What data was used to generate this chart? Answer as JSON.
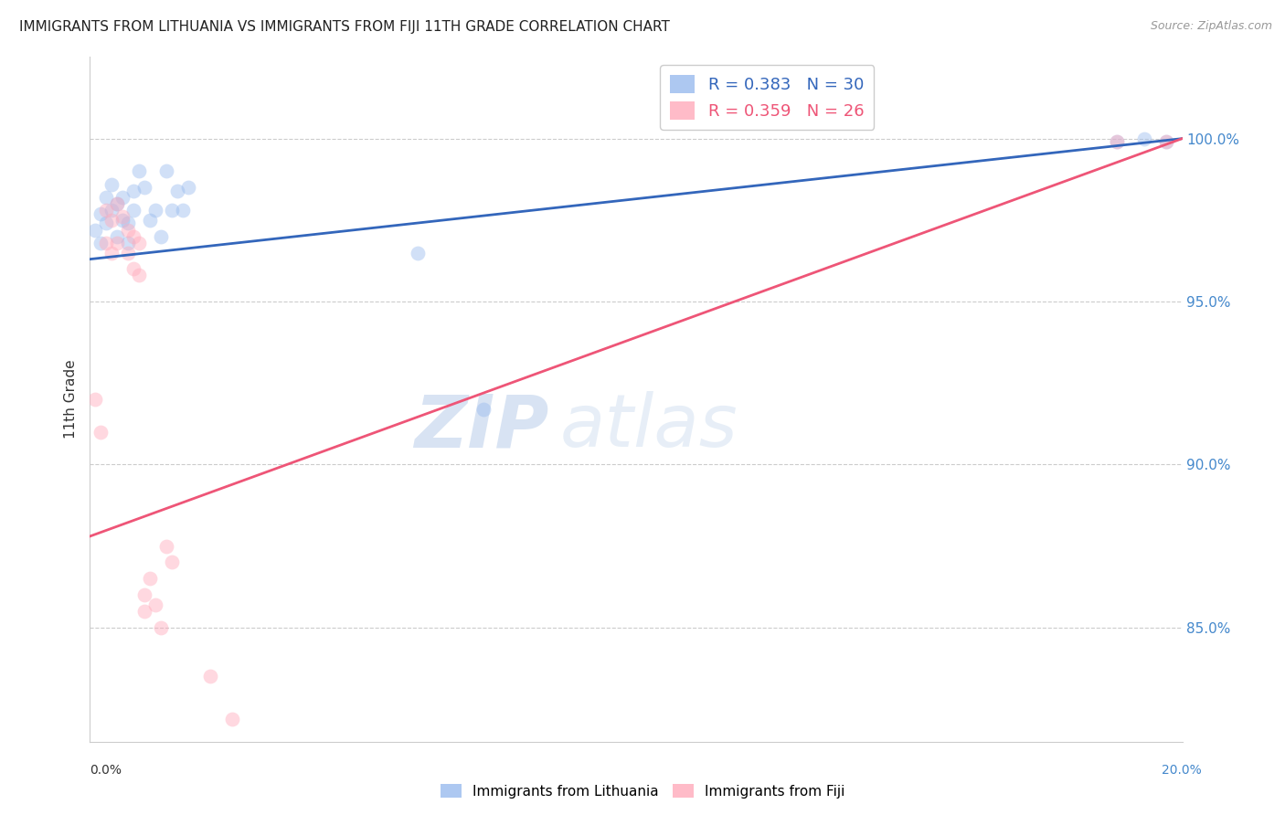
{
  "title": "IMMIGRANTS FROM LITHUANIA VS IMMIGRANTS FROM FIJI 11TH GRADE CORRELATION CHART",
  "source": "Source: ZipAtlas.com",
  "ylabel": "11th Grade",
  "ytick_labels": [
    "100.0%",
    "95.0%",
    "90.0%",
    "85.0%"
  ],
  "ytick_values": [
    1.0,
    0.95,
    0.9,
    0.85
  ],
  "xlim": [
    0.0,
    0.2
  ],
  "ylim": [
    0.815,
    1.025
  ],
  "legend_blue": "R = 0.383   N = 30",
  "legend_pink": "R = 0.359   N = 26",
  "watermark_zip": "ZIP",
  "watermark_atlas": "atlas",
  "blue_color": "#99bbee",
  "pink_color": "#ffaabb",
  "blue_line_color": "#3366bb",
  "pink_line_color": "#ee5577",
  "blue_line_x": [
    0.0,
    0.2
  ],
  "blue_line_y": [
    0.963,
    1.0
  ],
  "pink_line_x": [
    0.0,
    0.2
  ],
  "pink_line_y": [
    0.878,
    1.0
  ],
  "blue_scatter_x": [
    0.001,
    0.002,
    0.002,
    0.003,
    0.003,
    0.004,
    0.004,
    0.005,
    0.005,
    0.006,
    0.006,
    0.007,
    0.007,
    0.008,
    0.008,
    0.009,
    0.01,
    0.011,
    0.012,
    0.013,
    0.014,
    0.015,
    0.016,
    0.017,
    0.018,
    0.06,
    0.072,
    0.188,
    0.193,
    0.197
  ],
  "blue_scatter_y": [
    0.972,
    0.977,
    0.968,
    0.982,
    0.974,
    0.986,
    0.978,
    0.97,
    0.98,
    0.975,
    0.982,
    0.968,
    0.974,
    0.984,
    0.978,
    0.99,
    0.985,
    0.975,
    0.978,
    0.97,
    0.99,
    0.978,
    0.984,
    0.978,
    0.985,
    0.965,
    0.917,
    0.999,
    1.0,
    0.999
  ],
  "pink_scatter_x": [
    0.001,
    0.002,
    0.003,
    0.003,
    0.004,
    0.004,
    0.005,
    0.005,
    0.006,
    0.007,
    0.007,
    0.008,
    0.008,
    0.009,
    0.009,
    0.01,
    0.01,
    0.011,
    0.012,
    0.013,
    0.014,
    0.015,
    0.022,
    0.026,
    0.188,
    0.197
  ],
  "pink_scatter_y": [
    0.92,
    0.91,
    0.978,
    0.968,
    0.975,
    0.965,
    0.98,
    0.968,
    0.976,
    0.972,
    0.965,
    0.97,
    0.96,
    0.968,
    0.958,
    0.855,
    0.86,
    0.865,
    0.857,
    0.85,
    0.875,
    0.87,
    0.835,
    0.822,
    0.999,
    0.999
  ],
  "scatter_size": 130,
  "scatter_alpha": 0.45,
  "grid_color": "#cccccc",
  "right_label_color": "#4488cc",
  "background_color": "#ffffff"
}
